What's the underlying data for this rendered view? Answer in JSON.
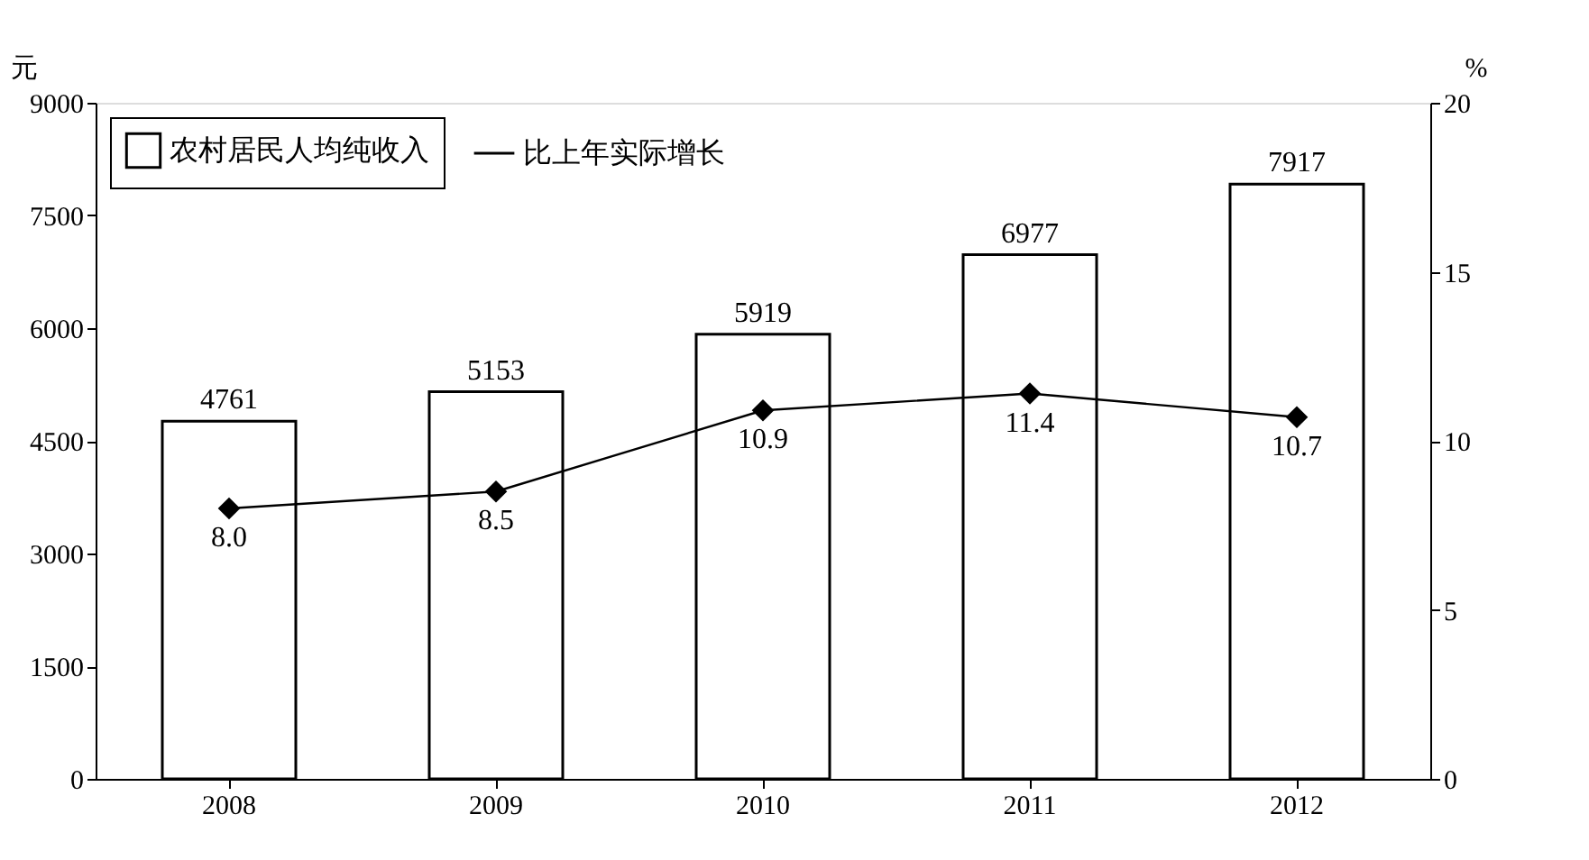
{
  "chart_data": {
    "type": "bar",
    "ylabel": "元",
    "y2label": "%",
    "categories": [
      "2008",
      "2009",
      "2010",
      "2011",
      "2012"
    ],
    "series": [
      {
        "name": "农村居民人均纯收入",
        "color": "#ffffff",
        "values": [
          4761,
          5153,
          5919,
          6977,
          7917
        ],
        "value_labels": [
          "4761",
          "5153",
          "5919",
          "6977",
          "7917"
        ]
      },
      {
        "name": "比上年实际增长",
        "type": "line",
        "axis": "y2",
        "color": "#000000",
        "marker": "diamond",
        "values": [
          8.0,
          8.5,
          10.9,
          11.4,
          10.7
        ],
        "value_labels": [
          "8.0",
          "8.5",
          "10.9",
          "11.4",
          "10.7"
        ]
      }
    ],
    "ylim": [
      0,
      9000
    ],
    "yticks": [
      0,
      1500,
      3000,
      4500,
      6000,
      7500,
      9000
    ],
    "y2lim": [
      0,
      20
    ],
    "y2ticks": [
      0,
      5,
      10,
      15,
      20
    ],
    "legend": "top left",
    "grid": false
  }
}
